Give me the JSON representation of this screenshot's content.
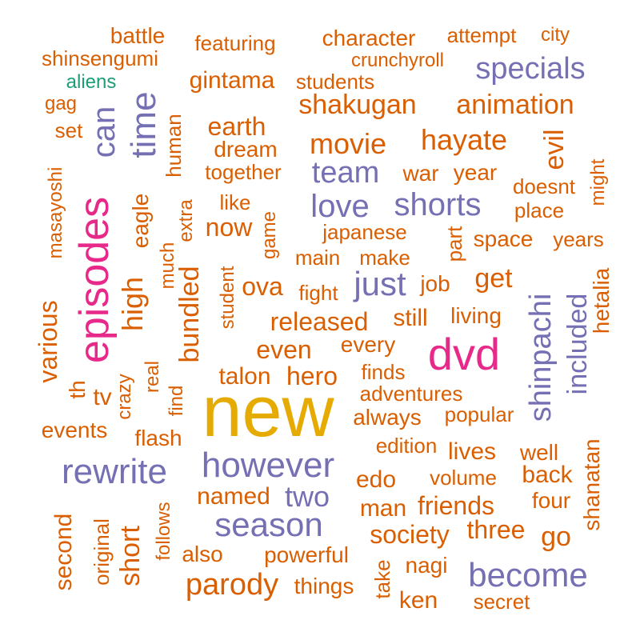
{
  "colors": {
    "orange": "#d95f02",
    "purple": "#7570b3",
    "magenta": "#e7298a",
    "gold": "#e6ab02",
    "teal": "#1b9e77"
  },
  "words": [
    {
      "text": "new",
      "color": "gold"
    },
    {
      "text": "episodes",
      "color": "magenta"
    },
    {
      "text": "dvd",
      "color": "magenta"
    },
    {
      "text": "however",
      "color": "purple"
    },
    {
      "text": "rewrite",
      "color": "purple"
    },
    {
      "text": "season",
      "color": "purple"
    },
    {
      "text": "become",
      "color": "purple"
    },
    {
      "text": "time",
      "color": "purple"
    },
    {
      "text": "can",
      "color": "purple"
    },
    {
      "text": "shinpachi",
      "color": "purple"
    },
    {
      "text": "specials",
      "color": "purple"
    },
    {
      "text": "love",
      "color": "purple"
    },
    {
      "text": "shorts",
      "color": "purple"
    },
    {
      "text": "team",
      "color": "purple"
    },
    {
      "text": "just",
      "color": "purple"
    },
    {
      "text": "two",
      "color": "purple"
    },
    {
      "text": "included",
      "color": "purple"
    },
    {
      "text": "aliens",
      "color": "teal"
    },
    {
      "text": "shakugan",
      "color": "orange"
    },
    {
      "text": "animation",
      "color": "orange"
    },
    {
      "text": "hayate",
      "color": "orange"
    },
    {
      "text": "movie",
      "color": "orange"
    },
    {
      "text": "parody",
      "color": "orange"
    },
    {
      "text": "high",
      "color": "orange"
    },
    {
      "text": "bundled",
      "color": "orange"
    },
    {
      "text": "short",
      "color": "orange"
    },
    {
      "text": "second",
      "color": "orange"
    },
    {
      "text": "evil",
      "color": "orange"
    },
    {
      "text": "hetalia",
      "color": "orange"
    },
    {
      "text": "shanatan",
      "color": "orange"
    },
    {
      "text": "released",
      "color": "orange"
    },
    {
      "text": "even",
      "color": "orange"
    },
    {
      "text": "earth",
      "color": "orange"
    },
    {
      "text": "get",
      "color": "orange"
    },
    {
      "text": "now",
      "color": "orange"
    },
    {
      "text": "ova",
      "color": "orange"
    },
    {
      "text": "hero",
      "color": "orange"
    },
    {
      "text": "society",
      "color": "orange"
    },
    {
      "text": "friends",
      "color": "orange"
    },
    {
      "text": "three",
      "color": "orange"
    },
    {
      "text": "go",
      "color": "orange"
    },
    {
      "text": "battle",
      "color": "orange"
    },
    {
      "text": "featuring",
      "color": "orange"
    },
    {
      "text": "character",
      "color": "orange"
    },
    {
      "text": "attempt",
      "color": "orange"
    },
    {
      "text": "city",
      "color": "orange"
    },
    {
      "text": "shinsengumi",
      "color": "orange"
    },
    {
      "text": "crunchyroll",
      "color": "orange"
    },
    {
      "text": "gintama",
      "color": "orange"
    },
    {
      "text": "students",
      "color": "orange"
    },
    {
      "text": "gag",
      "color": "orange"
    },
    {
      "text": "set",
      "color": "orange"
    },
    {
      "text": "human",
      "color": "orange"
    },
    {
      "text": "dream",
      "color": "orange"
    },
    {
      "text": "together",
      "color": "orange"
    },
    {
      "text": "war",
      "color": "orange"
    },
    {
      "text": "year",
      "color": "orange"
    },
    {
      "text": "doesnt",
      "color": "orange"
    },
    {
      "text": "might",
      "color": "orange"
    },
    {
      "text": "place",
      "color": "orange"
    },
    {
      "text": "masayoshi",
      "color": "orange"
    },
    {
      "text": "eagle",
      "color": "orange"
    },
    {
      "text": "extra",
      "color": "orange"
    },
    {
      "text": "like",
      "color": "orange"
    },
    {
      "text": "game",
      "color": "orange"
    },
    {
      "text": "japanese",
      "color": "orange"
    },
    {
      "text": "part",
      "color": "orange"
    },
    {
      "text": "space",
      "color": "orange"
    },
    {
      "text": "years",
      "color": "orange"
    },
    {
      "text": "much",
      "color": "orange"
    },
    {
      "text": "main",
      "color": "orange"
    },
    {
      "text": "make",
      "color": "orange"
    },
    {
      "text": "student",
      "color": "orange"
    },
    {
      "text": "fight",
      "color": "orange"
    },
    {
      "text": "job",
      "color": "orange"
    },
    {
      "text": "various",
      "color": "orange"
    },
    {
      "text": "still",
      "color": "orange"
    },
    {
      "text": "living",
      "color": "orange"
    },
    {
      "text": "every",
      "color": "orange"
    },
    {
      "text": "real",
      "color": "orange"
    },
    {
      "text": "crazy",
      "color": "orange"
    },
    {
      "text": "th",
      "color": "orange"
    },
    {
      "text": "tv",
      "color": "orange"
    },
    {
      "text": "talon",
      "color": "orange"
    },
    {
      "text": "finds",
      "color": "orange"
    },
    {
      "text": "find",
      "color": "orange"
    },
    {
      "text": "adventures",
      "color": "orange"
    },
    {
      "text": "events",
      "color": "orange"
    },
    {
      "text": "always",
      "color": "orange"
    },
    {
      "text": "popular",
      "color": "orange"
    },
    {
      "text": "flash",
      "color": "orange"
    },
    {
      "text": "edition",
      "color": "orange"
    },
    {
      "text": "lives",
      "color": "orange"
    },
    {
      "text": "well",
      "color": "orange"
    },
    {
      "text": "edo",
      "color": "orange"
    },
    {
      "text": "volume",
      "color": "orange"
    },
    {
      "text": "back",
      "color": "orange"
    },
    {
      "text": "named",
      "color": "orange"
    },
    {
      "text": "man",
      "color": "orange"
    },
    {
      "text": "four",
      "color": "orange"
    },
    {
      "text": "original",
      "color": "orange"
    },
    {
      "text": "follows",
      "color": "orange"
    },
    {
      "text": "also",
      "color": "orange"
    },
    {
      "text": "powerful",
      "color": "orange"
    },
    {
      "text": "nagi",
      "color": "orange"
    },
    {
      "text": "take",
      "color": "orange"
    },
    {
      "text": "things",
      "color": "orange"
    },
    {
      "text": "ken",
      "color": "orange"
    },
    {
      "text": "secret",
      "color": "orange"
    }
  ]
}
